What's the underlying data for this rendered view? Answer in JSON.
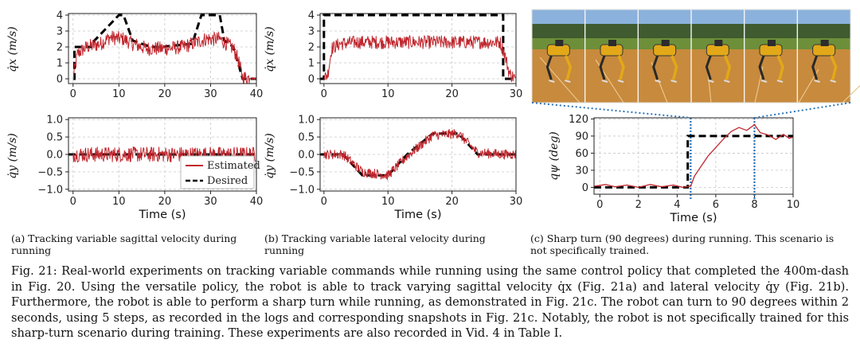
{
  "figure": {
    "subcaptions": {
      "a": "(a) Tracking variable sagittal velocity during running",
      "b": "(b) Tracking variable lateral velocity during running",
      "c": "(c) Sharp turn (90 degrees) during running. This scenario is not specifically trained."
    },
    "caption": "Fig. 21: Real-world experiments on tracking variable commands while running using the same control policy that completed the 400m-dash in Fig. 20. Using the versatile policy, the robot is able to track varying sagittal velocity q̇x (Fig. 21a) and lateral velocity q̇y (Fig. 21b). Furthermore, the robot is able to perform a sharp turn while running, as demonstrated in Fig. 21c. The robot can turn to 90 degrees within 2 seconds, using 5 steps, as recorded in the logs and corresponding snapshots in Fig. 21c. Notably, the robot is not specifically trained for this sharp-turn scenario during training. These experiments are also recorded in Vid. 4 in Table I.",
    "photo_strip": {
      "snapshot_count": 6,
      "colors": {
        "sky": "#8bb2dc",
        "trees": "#3f5b2f",
        "grass": "#6d8f3a",
        "track": "#c88a3c"
      }
    }
  },
  "chart_data": [
    {
      "id": "a-top",
      "type": "line",
      "ylabel": "q̇x (m/s)",
      "xlabel": "",
      "xlim": [
        -1,
        40
      ],
      "ylim": [
        -0.3,
        4.1
      ],
      "xticks": [
        "0",
        "10",
        "20",
        "30",
        "40"
      ],
      "yticks": [
        "0",
        "1",
        "2",
        "3",
        "4"
      ],
      "series": [
        {
          "style": "dashed",
          "color": "#000000",
          "x": [
            0,
            0.3,
            0.3,
            4,
            4,
            10,
            11,
            13,
            17,
            19,
            26,
            28,
            32,
            33,
            35,
            37,
            40
          ],
          "y": [
            0,
            0,
            2,
            2,
            2.2,
            4,
            4,
            2.4,
            2,
            2,
            2.2,
            4,
            4,
            2.4,
            2,
            0,
            0
          ]
        },
        {
          "style": "noisy",
          "color": "#c0262d",
          "x": [
            0,
            1,
            3,
            6,
            8,
            11,
            13,
            16,
            20,
            24,
            27,
            29,
            32,
            34,
            35,
            36,
            37,
            40
          ],
          "y": [
            0,
            1.6,
            2.0,
            2.2,
            2.6,
            2.5,
            2.2,
            1.9,
            1.9,
            2.0,
            2.3,
            2.5,
            2.5,
            2.1,
            1.9,
            1.2,
            0.1,
            0
          ],
          "noise": 0.45
        }
      ]
    },
    {
      "id": "b-top",
      "type": "line",
      "ylabel": "q̇x (m/s)",
      "xlabel": "",
      "xlim": [
        -0.6,
        30
      ],
      "ylim": [
        -0.3,
        4.1
      ],
      "xticks": [
        "0",
        "10",
        "20",
        "30"
      ],
      "yticks": [
        "0",
        "1",
        "2",
        "3",
        "4"
      ],
      "series": [
        {
          "style": "dashed",
          "color": "#000000",
          "x": [
            -0.6,
            0,
            0,
            28,
            28,
            30
          ],
          "y": [
            0,
            0,
            4,
            4,
            0,
            0
          ]
        },
        {
          "style": "noisy",
          "color": "#c0262d",
          "x": [
            0,
            0.6,
            1.2,
            2.5,
            5,
            10,
            15,
            20,
            25,
            27.5,
            28.2,
            29,
            30
          ],
          "y": [
            0,
            0.3,
            1.9,
            2.2,
            2.3,
            2.3,
            2.3,
            2.3,
            2.3,
            2.3,
            1.6,
            0.3,
            0
          ],
          "noise": 0.42
        }
      ]
    },
    {
      "id": "a-bottom",
      "type": "line",
      "ylabel": "q̇y (m/s)",
      "xlabel": "Time (s)",
      "xlim": [
        -1,
        40
      ],
      "ylim": [
        -1.05,
        1.05
      ],
      "xticks": [
        "0",
        "10",
        "20",
        "30",
        "40"
      ],
      "yticks": [
        "−1.0",
        "−0.5",
        "0.0",
        "0.5",
        "1.0"
      ],
      "legend": {
        "position": "bottom-right",
        "entries": [
          "Estimated",
          "Desired"
        ]
      },
      "series": [
        {
          "style": "dashed",
          "color": "#000000",
          "x": [
            -1,
            40
          ],
          "y": [
            0,
            0
          ]
        },
        {
          "style": "noisy",
          "color": "#c0262d",
          "x": [
            0,
            36,
            37,
            40
          ],
          "y": [
            0,
            0,
            0,
            0
          ],
          "noise": 0.22
        }
      ]
    },
    {
      "id": "b-bottom",
      "type": "line",
      "ylabel": "q̇y (m/s)",
      "xlabel": "Time (s)",
      "xlim": [
        -0.6,
        30
      ],
      "ylim": [
        -1.05,
        1.05
      ],
      "xticks": [
        "0",
        "10",
        "20",
        "30"
      ],
      "yticks": [
        "−1.0",
        "−0.5",
        "0.0",
        "0.5",
        "1.0"
      ],
      "series": [
        {
          "style": "dashed",
          "color": "#000000",
          "x": [
            -0.6,
            3,
            6,
            10,
            13,
            17,
            21,
            24,
            30
          ],
          "y": [
            0,
            0,
            -0.6,
            -0.6,
            0,
            0.6,
            0.6,
            0,
            0
          ]
        },
        {
          "style": "noisy",
          "color": "#c0262d",
          "x": [
            0,
            3,
            6,
            10,
            13,
            17,
            21,
            24,
            28,
            30
          ],
          "y": [
            0,
            0,
            -0.5,
            -0.6,
            -0.05,
            0.55,
            0.6,
            0.05,
            0,
            0
          ],
          "noise": 0.14
        }
      ]
    },
    {
      "id": "c-bottom",
      "type": "line",
      "ylabel": "qψ (deg)",
      "xlabel": "Time (s)",
      "xlim": [
        -0.3,
        10
      ],
      "ylim": [
        -12,
        122
      ],
      "xticks": [
        "0",
        "2",
        "4",
        "6",
        "8",
        "10"
      ],
      "yticks": [
        "0",
        "30",
        "60",
        "90",
        "120"
      ],
      "vlines": [
        {
          "x": 4.7,
          "color": "#2b74b8"
        },
        {
          "x": 8,
          "color": "#2b74b8"
        }
      ],
      "series": [
        {
          "style": "dashed",
          "color": "#000000",
          "x": [
            -0.3,
            4.55,
            4.55,
            10
          ],
          "y": [
            0,
            0,
            90,
            90
          ]
        },
        {
          "style": "smooth",
          "color": "#c0262d",
          "x": [
            -0.3,
            0.3,
            0.8,
            1.4,
            2,
            2.6,
            3.2,
            3.8,
            4.3,
            4.7,
            4.9,
            5.2,
            5.6,
            6,
            6.4,
            6.8,
            7.2,
            7.6,
            8.0,
            8.3,
            8.7,
            9.1,
            9.5,
            9.8,
            10
          ],
          "y": [
            2,
            5,
            1,
            4,
            0,
            5,
            1,
            4,
            0,
            2,
            20,
            35,
            55,
            70,
            85,
            98,
            105,
            100,
            110,
            96,
            92,
            84,
            93,
            86,
            88
          ]
        }
      ]
    }
  ]
}
